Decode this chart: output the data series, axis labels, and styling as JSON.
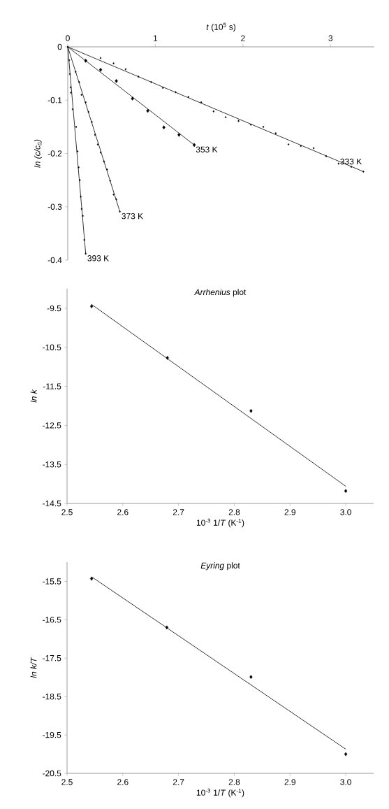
{
  "chart_data": [
    {
      "type": "scatter",
      "xlabel": "*t* (10$^{5}$ s)",
      "ylabel": "ln (c/c$_{0}$)",
      "xlim": [
        0,
        3.5
      ],
      "ylim": [
        -0.4,
        0
      ],
      "xticks": [
        0,
        1,
        2,
        3
      ],
      "yticks": [
        0,
        -0.1,
        -0.2,
        -0.3,
        -0.4
      ],
      "series": [
        {
          "color": "#000000",
          "marker": "diamond",
          "x": [
            0,
            0.016,
            0.024,
            0.032,
            0.037,
            0.056,
            0.096,
            0.112,
            0.125,
            0.138,
            0.149,
            0.159,
            0.173,
            0.189,
            0.205
          ],
          "values": [
            0,
            -0.025,
            -0.051,
            -0.076,
            -0.086,
            -0.117,
            -0.15,
            -0.196,
            -0.226,
            -0.25,
            -0.281,
            -0.304,
            -0.317,
            -0.362,
            -0.388
          ]
        },
        {
          "type": "line",
          "name": "393 K",
          "color": "#000000",
          "x": [
            0,
            0.205
          ],
          "values": [
            0,
            -0.388
          ]
        },
        {
          "color": "#000000",
          "marker": "diamond",
          "x": [
            0.09,
            0.13,
            0.157,
            0.205,
            0.237,
            0.276,
            0.311,
            0.343,
            0.375,
            0.414,
            0.449,
            0.484,
            0.523,
            0.555,
            0.595
          ],
          "values": [
            -0.047,
            -0.066,
            -0.09,
            -0.104,
            -0.122,
            -0.141,
            -0.165,
            -0.183,
            -0.198,
            -0.215,
            -0.23,
            -0.251,
            -0.277,
            -0.286,
            -0.309
          ]
        },
        {
          "type": "line",
          "name": "373 K",
          "color": "#000000",
          "x": [
            0,
            0.595
          ],
          "values": [
            0,
            -0.309
          ]
        },
        {
          "color": "#000000",
          "marker": "diamond",
          "x": [
            0.205,
            0.375,
            0.555,
            0.739,
            0.913,
            1.097,
            1.27,
            1.444
          ],
          "values": [
            -0.026,
            -0.043,
            -0.064,
            -0.097,
            -0.12,
            -0.151,
            -0.165,
            -0.184
          ]
        },
        {
          "type": "line",
          "name": "353 K",
          "color": "#000000",
          "x": [
            0,
            1.444
          ],
          "values": [
            0,
            -0.184
          ]
        },
        {
          "color": "#000000",
          "marker": "diamond",
          "x": [
            0.375,
            0.523,
            0.661,
            0.807,
            0.953,
            1.086,
            1.231,
            1.378,
            1.524,
            1.665,
            1.803,
            1.95,
            2.09,
            2.233,
            2.375,
            2.52,
            2.661,
            2.807,
            2.95,
            3.092,
            3.237,
            3.375
          ],
          "values": [
            -0.021,
            -0.031,
            -0.042,
            -0.056,
            -0.066,
            -0.077,
            -0.085,
            -0.094,
            -0.104,
            -0.121,
            -0.132,
            -0.139,
            -0.146,
            -0.15,
            -0.162,
            -0.183,
            -0.186,
            -0.19,
            -0.205,
            -0.219,
            -0.225,
            -0.234
          ]
        },
        {
          "type": "line",
          "name": "333 K",
          "color": "#000000",
          "x": [
            0,
            3.375
          ],
          "values": [
            0,
            -0.234
          ]
        }
      ]
    },
    {
      "type": "scatter",
      "title": "*Arrhenius* plot",
      "xlabel": "10$^{-3}$ 1/*T* (K$^{-1}$)",
      "ylabel": "ln k",
      "xlim": [
        2.5,
        3.05
      ],
      "ylim": [
        -14.5,
        -9.0
      ],
      "xticks": [
        2.5,
        2.6,
        2.7,
        2.8,
        2.9,
        {
          "value": 3,
          "label": "3.0"
        }
      ],
      "yticks": [
        -9.5,
        -10.5,
        -11.5,
        -12.5,
        -13.5,
        -14.5
      ],
      "series": [
        {
          "color": "#000000",
          "marker": "diamond",
          "x": [
            2.544,
            2.68,
            2.83,
            3.0
          ],
          "values": [
            -9.45,
            -10.77,
            -12.13,
            -14.18
          ]
        },
        {
          "type": "line",
          "color": "#000000",
          "x": [
            2.544,
            3.0
          ],
          "values": [
            -9.4,
            -14.06
          ]
        }
      ]
    },
    {
      "type": "scatter",
      "title": "*Eyring* plot",
      "xlabel": "10$^{-3}$ 1/*T* (K$^{-1}$)",
      "ylabel": "ln k/T",
      "xlim": [
        2.5,
        3.05
      ],
      "ylim": [
        -20.5,
        -15.0
      ],
      "xticks": [
        2.5,
        2.6,
        2.7,
        2.8,
        2.9,
        {
          "value": 3,
          "label": "3.0"
        }
      ],
      "yticks": [
        -15.5,
        -16.5,
        -17.5,
        -18.5,
        -19.5,
        -20.5
      ],
      "series": [
        {
          "color": "#000000",
          "marker": "diamond",
          "x": [
            2.544,
            2.679,
            2.83,
            3.0
          ],
          "values": [
            -15.43,
            -16.7,
            -17.99,
            -20.0
          ]
        },
        {
          "type": "line",
          "color": "#000000",
          "x": [
            2.544,
            3.0
          ],
          "values": [
            -15.38,
            -19.87
          ]
        }
      ]
    }
  ]
}
